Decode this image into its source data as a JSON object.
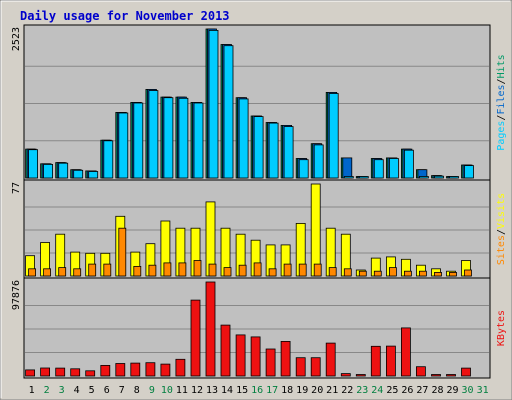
{
  "chart_data": {
    "type": "bar",
    "title": "Daily usage for November 2013",
    "categories": [
      "1",
      "2",
      "3",
      "4",
      "5",
      "6",
      "7",
      "8",
      "9",
      "10",
      "11",
      "12",
      "13",
      "14",
      "15",
      "16",
      "17",
      "18",
      "19",
      "20",
      "21",
      "22",
      "23",
      "24",
      "25",
      "26",
      "27",
      "28",
      "29",
      "30",
      "31"
    ],
    "weekend_days": [
      "2",
      "3",
      "9",
      "10",
      "16",
      "17",
      "23",
      "24",
      "30",
      "31"
    ],
    "colors": {
      "frame_bg": "#d4d0c8",
      "plot_bg": "#c0c0c0",
      "title": "#0000cc",
      "weekday_label": "#000000",
      "weekend_label": "#007f3f",
      "pages": "#00ccff",
      "files": "#0066cc",
      "hits": "#009966",
      "visits": "#ffff00",
      "sites": "#ff8800",
      "kbytes": "#ee1111",
      "grid": "#888888"
    },
    "panels": [
      {
        "name": "traffic",
        "ymax_label": "2523",
        "ymax": 2523,
        "legend": [
          {
            "text": "Pages",
            "color": "#00ccff"
          },
          {
            "text": "/",
            "color": "#000000"
          },
          {
            "text": "Files",
            "color": "#0066cc"
          },
          {
            "text": "/",
            "color": "#000000"
          },
          {
            "text": "Hits",
            "color": "#009966"
          }
        ],
        "series": [
          {
            "name": "Hits",
            "color": "#009966",
            "values": [
              490,
              240,
              260,
              140,
              120,
              640,
              1110,
              1280,
              1500,
              1370,
              1370,
              1280,
              2523,
              2260,
              1360,
              1050,
              940,
              890,
              330,
              580,
              1450,
              340,
              10,
              330,
              340,
              490,
              140,
              40,
              20,
              220,
              0
            ]
          },
          {
            "name": "Files",
            "color": "#0066cc",
            "values": [
              490,
              240,
              260,
              140,
              120,
              640,
              1110,
              1280,
              1500,
              1370,
              1370,
              1280,
              2523,
              2260,
              1360,
              1050,
              940,
              890,
              330,
              580,
              1450,
              340,
              10,
              330,
              340,
              490,
              140,
              40,
              20,
              220,
              0
            ]
          },
          {
            "name": "Pages",
            "color": "#00ccff",
            "values": [
              480,
              230,
              250,
              130,
              110,
              630,
              1100,
              1270,
              1480,
              1360,
              1350,
              1270,
              2500,
              2240,
              1340,
              1040,
              930,
              870,
              310,
              560,
              1430,
              5,
              5,
              310,
              330,
              470,
              5,
              30,
              5,
              210,
              0
            ]
          }
        ]
      },
      {
        "name": "visitors",
        "ymax_label": "77",
        "ymax": 77,
        "legend": [
          {
            "text": "Sites",
            "color": "#ff8800"
          },
          {
            "text": "/",
            "color": "#000000"
          },
          {
            "text": "Visits",
            "color": "#ffff00"
          }
        ],
        "series": [
          {
            "name": "Visits",
            "color": "#ffff00",
            "values": [
              17,
              28,
              35,
              20,
              19,
              19,
              50,
              20,
              27,
              46,
              40,
              40,
              62,
              40,
              35,
              30,
              26,
              26,
              44,
              77,
              40,
              35,
              5,
              15,
              16,
              14,
              9,
              6,
              4,
              13,
              0
            ]
          },
          {
            "name": "Sites",
            "color": "#ff8800",
            "values": [
              6,
              6,
              7,
              6,
              10,
              10,
              40,
              8,
              9,
              11,
              11,
              13,
              10,
              7,
              9,
              11,
              6,
              10,
              10,
              10,
              7,
              6,
              4,
              4,
              7,
              4,
              4,
              3,
              3,
              5,
              0
            ]
          }
        ]
      },
      {
        "name": "kbytes",
        "ymax_label": "97876",
        "ymax": 97876,
        "legend": [
          {
            "text": "KBytes",
            "color": "#ee1111"
          }
        ],
        "series": [
          {
            "name": "KBytes",
            "color": "#ee1111",
            "values": [
              6300,
              8300,
              8200,
              7500,
              5400,
              11000,
              13000,
              13400,
              13800,
              12400,
              17400,
              79000,
              97876,
              53000,
              42800,
              40700,
              28100,
              36000,
              19100,
              19100,
              34300,
              2500,
              1300,
              30900,
              31100,
              50100,
              9700,
              1100,
              1200,
              8200,
              0
            ]
          }
        ]
      }
    ]
  }
}
